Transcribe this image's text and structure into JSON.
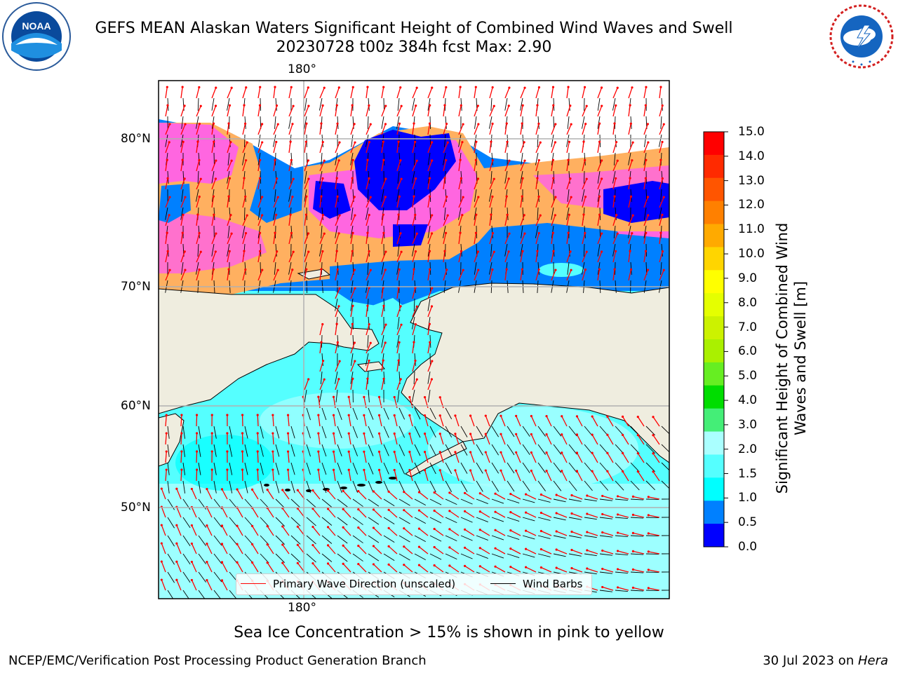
{
  "header": {
    "title_line1": "GEFS MEAN Alaskan Waters Significant Height of Combined Wind Waves and Swell",
    "title_line2": "20230728 t00z 384h fcst   Max: 2.90"
  },
  "logos": {
    "noaa": {
      "text": "NOAA",
      "ring_text": "NATIONAL OCEANIC AND ATMOSPHERIC ADMINISTRATION · U.S. DEPARTMENT OF COMMERCE"
    },
    "nws": {
      "ring_text": "NATIONAL WEATHER SERVICE"
    }
  },
  "map": {
    "top_longitude_label": "180°",
    "bottom_longitude_label": "180°",
    "latitude_labels": [
      "80°N",
      "70°N",
      "60°N",
      "50°N"
    ],
    "colors": {
      "land": "#efeddf",
      "sea_ice": [
        "#ff66e0",
        "#f8a0d0",
        "#ffb060"
      ],
      "frame": "#000000",
      "grid": "#b0b0b0"
    }
  },
  "colorbar": {
    "label": "Significant Height of Combined Wind Waves and Swell [m]",
    "ticks": [
      "15.0",
      "14.0",
      "13.0",
      "12.0",
      "11.0",
      "10.0",
      "9.0",
      "8.0",
      "7.0",
      "6.0",
      "5.0",
      "4.0",
      "3.0",
      "2.0",
      "1.5",
      "1.0",
      "0.5",
      "0.0"
    ],
    "colors": [
      "#ff0000",
      "#ff2a00",
      "#ff5500",
      "#ff8000",
      "#ffaa00",
      "#ffd500",
      "#ffff00",
      "#e5ff00",
      "#ccf200",
      "#aaf000",
      "#66ee22",
      "#00dd00",
      "#44ee77",
      "#aaffff",
      "#55ffff",
      "#00ffff",
      "#0080ff",
      "#0000ff"
    ]
  },
  "legend": {
    "wave_label": "Primary Wave Direction (unscaled)",
    "wave_color": "#ff0000",
    "wind_label": "Wind Barbs",
    "wind_color": "#000000"
  },
  "note": "Sea Ice Concentration > 15% is shown in pink to yellow",
  "footer": {
    "left": "NCEP/EMC/Verification Post Processing Product Generation Branch",
    "date": "30 Jul 2023",
    "on": " on ",
    "machine": "Hera"
  }
}
